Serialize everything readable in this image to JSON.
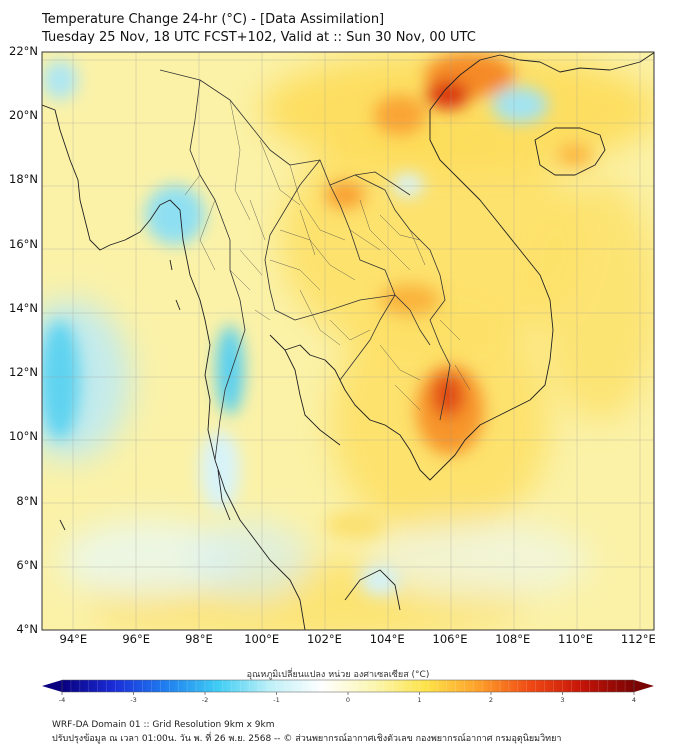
{
  "title": {
    "line1": "Temperature Change 24-hr (°C) - [Data Assimilation]",
    "line2": "Tuesday 25 Nov, 18 UTC FCST+102, Valid at :: Sun 30 Nov, 00 UTC"
  },
  "map": {
    "lat_range": [
      4,
      22
    ],
    "lon_range": [
      93,
      112.5
    ],
    "lat_labels": [
      "22°N",
      "20°N",
      "18°N",
      "16°N",
      "14°N",
      "12°N",
      "10°N",
      "8°N",
      "6°N",
      "4°N"
    ],
    "lat_values": [
      22,
      20,
      18,
      16,
      14,
      12,
      10,
      8,
      6,
      4
    ],
    "lon_labels": [
      "94°E",
      "96°E",
      "98°E",
      "100°E",
      "102°E",
      "104°E",
      "106°E",
      "108°E",
      "110°E",
      "112°E"
    ],
    "lon_values": [
      94,
      96,
      98,
      100,
      102,
      104,
      106,
      108,
      110,
      112
    ]
  },
  "colorbar": {
    "caption": "อุณหภูมิเปลี่ยนแปลง หน่วย องศาเซลเซียส (°C)",
    "ticks": [
      "-4",
      "-3",
      "-2",
      "-1",
      "0",
      "1",
      "2",
      "3",
      "4"
    ],
    "tick_values": [
      -4,
      -3,
      -2,
      -1,
      0,
      1,
      2,
      3,
      4
    ],
    "range": [
      -4,
      4
    ],
    "colors": [
      "#08007e",
      "#1a2cd8",
      "#1f7ff0",
      "#3fcdf4",
      "#bff0f8",
      "#ffffff",
      "#fbf6b0",
      "#fde34a",
      "#fda02a",
      "#f04a14",
      "#c41408",
      "#7a0404"
    ]
  },
  "footer": {
    "line1": "WRF-DA Domain 01 :: Grid Resolution 9km x 9km",
    "line2": "ปรับปรุงข้อมูล ณ เวลา 01:00น. วัน พ. ที่ 26 พ.ย. 2568 -- © ส่วนพยากรณ์อากาศเชิงตัวเลข กองพยากรณ์อากาศ กรมอุตุนิยมวิทยา"
  }
}
